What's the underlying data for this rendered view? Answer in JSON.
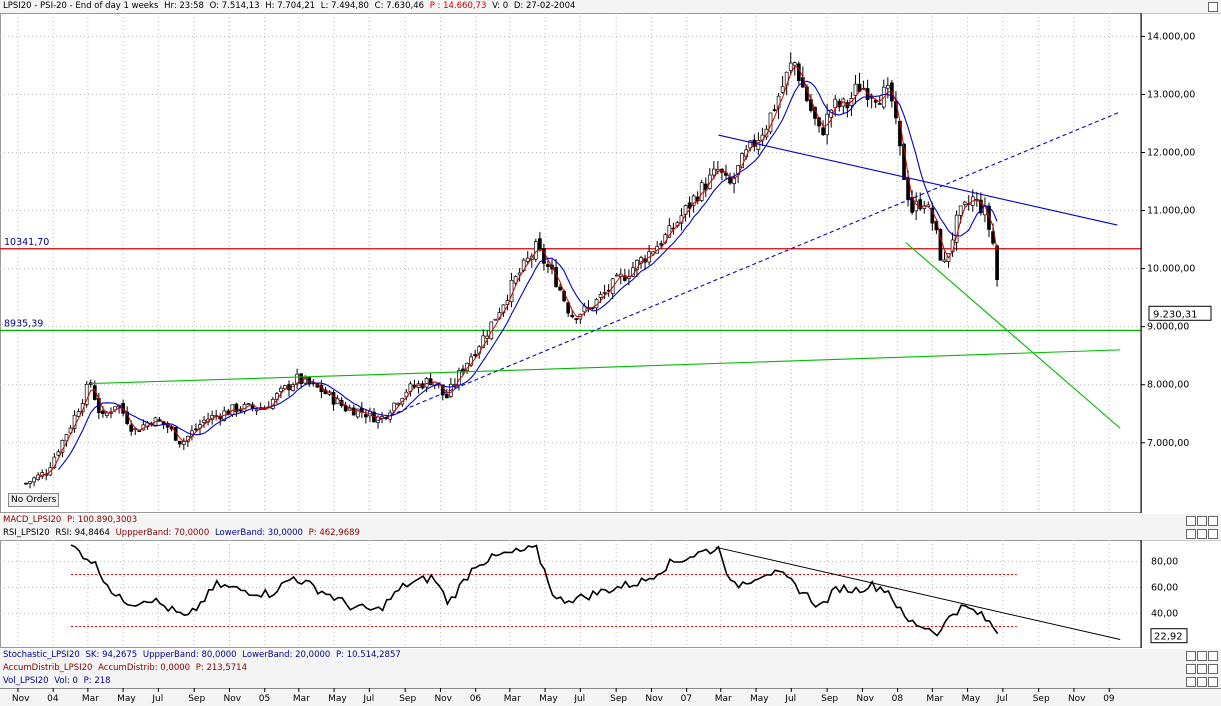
{
  "header": {
    "title": "LPSI20 - PSI-20 - End of day 1 weeks",
    "hr": "Hr: 23:58",
    "open": "O: 7.514,13",
    "high": "H: 7.704,21",
    "low": "L: 7.494,80",
    "close": "C: 7.630,46",
    "p": "P : 14.660,73",
    "v": "V: 0",
    "date": "D: 27-02-2004"
  },
  "no_orders": "No Orders",
  "macd_title": "MACD_LPSI20",
  "macd_p": "P: 100.890,3003",
  "rsi_title": "RSI_LPSI20",
  "rsi_value": "RSI: 94,8464",
  "rsi_upper": "UppperBand: 70,0000",
  "rsi_lower": "LowerBand: 30,0000",
  "rsi_p": "P: 462,9689",
  "stoch_title": "Stochastic_LPSI20",
  "stoch_sk": "SK: 94,2675",
  "stoch_upper": "UppperBand: 80,0000",
  "stoch_lower": "LowerBand: 20,0000",
  "stoch_p": "P: 10.514,2857",
  "accum_title": "AccumDistrib_LPSI20",
  "accum_value": "AccumDistrib: 0,0000",
  "accum_p": "P: 213,5714",
  "vol_title": "Vol_LPSI20",
  "vol_value": "Vol: 0",
  "vol_p": "P: 218",
  "colors": {
    "up": "#000000",
    "ma_fast": "#cc0000",
    "ma_slow": "#0000cc",
    "resistance": "#e00000",
    "support": "#00bb00",
    "trend": "#0000cc",
    "rsi": "#000000"
  },
  "chart_data": [
    {
      "type": "candlestick",
      "name": "PSI-20 weekly",
      "y_ticks": [
        "14.000,00",
        "13.000,00",
        "12.000,00",
        "11.000,00",
        "10.000,00",
        "9.000,00",
        "8.000,00",
        "7.000,00"
      ],
      "y_tick_values": [
        14000,
        13000,
        12000,
        11000,
        10000,
        9000,
        8000,
        7000
      ],
      "ylim": [
        6100,
        14300
      ],
      "last_price_label": "9.230,31",
      "last_price": 9230.31,
      "hlines": [
        {
          "label": "10341,70",
          "value": 10341.7,
          "color": "#e00000"
        },
        {
          "label": "8935,39",
          "value": 8935.39,
          "color": "#00bb00"
        }
      ],
      "x_labels": [
        "Nov",
        "04",
        "Mar",
        "May",
        "Jul",
        "Sep",
        "Nov",
        "05",
        "Mar",
        "May",
        "Jul",
        "Sep",
        "Nov",
        "06",
        "Mar",
        "May",
        "Jul",
        "Sep",
        "Nov",
        "07",
        "Mar",
        "May",
        "Jul",
        "Sep",
        "Nov",
        "08",
        "Mar",
        "May",
        "Jul",
        "Sep",
        "Nov",
        "09"
      ],
      "anchors": [
        [
          "2003-11-15",
          6300
        ],
        [
          "2003-12-20",
          6500
        ],
        [
          "2004-01-31",
          7300
        ],
        [
          "2004-03-05",
          8050
        ],
        [
          "2004-03-25",
          7400
        ],
        [
          "2004-04-20",
          7700
        ],
        [
          "2004-05-20",
          7200
        ],
        [
          "2004-06-20",
          7400
        ],
        [
          "2004-07-15",
          7300
        ],
        [
          "2004-08-10",
          7000
        ],
        [
          "2004-09-20",
          7400
        ],
        [
          "2004-11-15",
          7600
        ],
        [
          "2004-12-30",
          7600
        ],
        [
          "2005-02-25",
          8100
        ],
        [
          "2005-04-10",
          7900
        ],
        [
          "2005-05-20",
          7600
        ],
        [
          "2005-06-15",
          7550
        ],
        [
          "2005-07-20",
          7400
        ],
        [
          "2005-09-01",
          7900
        ],
        [
          "2005-10-20",
          8100
        ],
        [
          "2005-11-10",
          7750
        ],
        [
          "2005-12-10",
          8300
        ],
        [
          "2006-01-20",
          8900
        ],
        [
          "2006-03-10",
          9800
        ],
        [
          "2006-04-15",
          10350
        ],
        [
          "2006-05-20",
          9800
        ],
        [
          "2006-06-15",
          9200
        ],
        [
          "2006-07-15",
          9300
        ],
        [
          "2006-08-25",
          9700
        ],
        [
          "2006-10-20",
          10200
        ],
        [
          "2006-12-01",
          10600
        ],
        [
          "2007-01-20",
          11300
        ],
        [
          "2007-02-25",
          11700
        ],
        [
          "2007-03-15",
          11400
        ],
        [
          "2007-04-10",
          11900
        ],
        [
          "2007-05-20",
          12500
        ],
        [
          "2007-07-05",
          13600
        ],
        [
          "2007-07-25",
          13000
        ],
        [
          "2007-08-20",
          12300
        ],
        [
          "2007-09-10",
          12800
        ],
        [
          "2007-10-05",
          12800
        ],
        [
          "2007-10-25",
          13150
        ],
        [
          "2007-11-25",
          13000
        ],
        [
          "2007-12-20",
          13000
        ],
        [
          "2008-01-10",
          11700
        ],
        [
          "2008-01-25",
          11000
        ],
        [
          "2008-02-15",
          11200
        ],
        [
          "2008-03-05",
          10700
        ],
        [
          "2008-03-20",
          10000
        ],
        [
          "2008-04-15",
          10900
        ],
        [
          "2008-05-10",
          11200
        ],
        [
          "2008-05-30",
          11000
        ],
        [
          "2008-06-15",
          10400
        ],
        [
          "2008-06-27",
          9230
        ]
      ],
      "drawn_lines": [
        {
          "from": [
            "2004-03-05",
            8020
          ],
          "to": [
            "2006-01-10",
            8230
          ],
          "color": "#00bb00"
        },
        {
          "from": [
            "2006-01-10",
            8230
          ],
          "to": [
            "2009-01-20",
            8600
          ],
          "color": "#00bb00"
        },
        {
          "from": [
            "2005-07-15",
            7380
          ],
          "to": [
            "2009-01-20",
            12700
          ],
          "color": "#0000cc",
          "dashed": true
        },
        {
          "from": [
            "2007-02-25",
            12300
          ],
          "to": [
            "2009-01-15",
            10750
          ],
          "color": "#0000cc"
        },
        {
          "from": [
            "2008-01-15",
            10450
          ],
          "to": [
            "2009-01-20",
            7250
          ],
          "color": "#00bb00"
        }
      ]
    },
    {
      "type": "line",
      "name": "RSI",
      "y_ticks": [
        "80,00",
        "60,00",
        "40,00"
      ],
      "y_tick_values": [
        80,
        60,
        40
      ],
      "ylim": [
        15,
        95
      ],
      "bands": [
        70,
        30
      ],
      "last_label": "22,92",
      "last_value": 22.92,
      "anchors": [
        [
          "2004-02-01",
          92
        ],
        [
          "2004-03-10",
          80
        ],
        [
          "2004-04-20",
          52
        ],
        [
          "2004-05-20",
          48
        ],
        [
          "2004-06-15",
          52
        ],
        [
          "2004-08-20",
          36
        ],
        [
          "2004-10-10",
          62
        ],
        [
          "2004-11-20",
          58
        ],
        [
          "2005-01-10",
          55
        ],
        [
          "2005-02-20",
          68
        ],
        [
          "2005-04-20",
          55
        ],
        [
          "2005-06-01",
          45
        ],
        [
          "2005-07-15",
          42
        ],
        [
          "2005-09-01",
          62
        ],
        [
          "2005-10-20",
          68
        ],
        [
          "2005-11-15",
          48
        ],
        [
          "2006-01-01",
          78
        ],
        [
          "2006-02-15",
          85
        ],
        [
          "2006-04-15",
          90
        ],
        [
          "2006-05-20",
          50
        ],
        [
          "2006-07-01",
          52
        ],
        [
          "2006-09-01",
          60
        ],
        [
          "2006-10-20",
          65
        ],
        [
          "2006-12-01",
          78
        ],
        [
          "2007-02-01",
          88
        ],
        [
          "2007-02-28",
          90
        ],
        [
          "2007-03-20",
          60
        ],
        [
          "2007-04-15",
          65
        ],
        [
          "2007-05-20",
          72
        ],
        [
          "2007-06-20",
          68
        ],
        [
          "2007-07-25",
          55
        ],
        [
          "2007-08-20",
          45
        ],
        [
          "2007-09-20",
          60
        ],
        [
          "2007-10-20",
          58
        ],
        [
          "2007-11-15",
          62
        ],
        [
          "2007-12-15",
          58
        ],
        [
          "2008-01-15",
          35
        ],
        [
          "2008-02-15",
          30
        ],
        [
          "2008-03-15",
          25
        ],
        [
          "2008-04-01",
          40
        ],
        [
          "2008-04-25",
          45
        ],
        [
          "2008-05-20",
          40
        ],
        [
          "2008-06-10",
          32
        ],
        [
          "2008-06-27",
          22.92
        ]
      ],
      "trendline": {
        "from": [
          "2007-02-20",
          91
        ],
        "to": [
          "2009-01-20",
          20
        ]
      }
    }
  ]
}
